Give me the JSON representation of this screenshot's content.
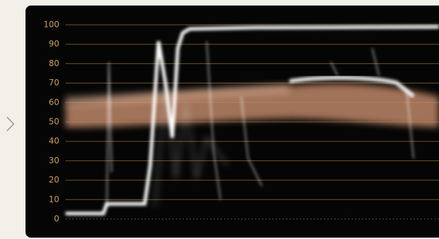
{
  "scope": {
    "yticks": [
      0,
      10,
      20,
      30,
      40,
      50,
      60,
      70,
      80,
      90,
      100
    ]
  }
}
